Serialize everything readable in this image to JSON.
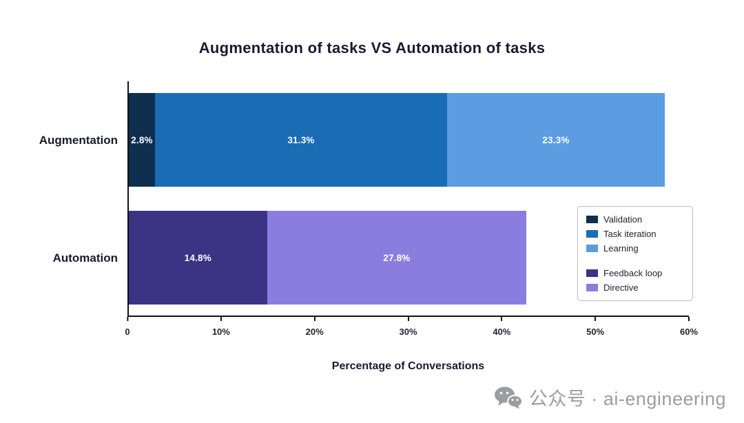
{
  "title": "Augmentation of tasks VS Automation of tasks",
  "chart_data": {
    "type": "bar",
    "orientation": "horizontal",
    "stacked": true,
    "categories": [
      "Augmentation",
      "Automation"
    ],
    "series": [
      {
        "name": "Validation",
        "color": "#0e2f4e",
        "values": [
          2.8,
          0
        ]
      },
      {
        "name": "Task iteration",
        "color": "#1a6cb5",
        "values": [
          31.3,
          0
        ]
      },
      {
        "name": "Learning",
        "color": "#5b9de0",
        "values": [
          23.3,
          0
        ]
      },
      {
        "name": "Feedback loop",
        "color": "#3b3384",
        "values": [
          0,
          14.8
        ]
      },
      {
        "name": "Directive",
        "color": "#8b7de0",
        "values": [
          0,
          27.8
        ]
      }
    ],
    "value_suffix": "%",
    "xlabel": "Percentage of Conversations",
    "xlim": [
      0,
      60
    ],
    "xticks": [
      "0",
      "10%",
      "20%",
      "30%",
      "40%",
      "50%",
      "60%"
    ],
    "grid": false,
    "legend_position": "right-middle",
    "legend_groups": [
      [
        "Validation",
        "Task iteration",
        "Learning"
      ],
      [
        "Feedback loop",
        "Directive"
      ]
    ]
  },
  "watermark": {
    "icon": "wechat-icon",
    "text": "公众号 · ai-engineering"
  }
}
